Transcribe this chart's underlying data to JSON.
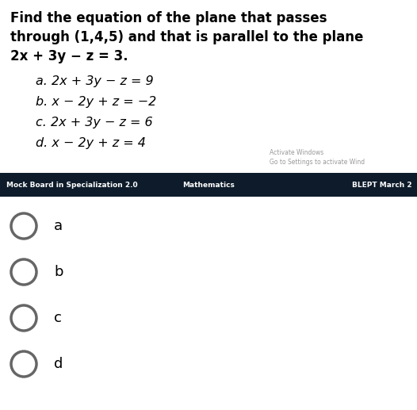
{
  "question_line1": "Find the equation of the plane that passes",
  "question_line2": "through (1,4,5) and that is parallel to the plane",
  "question_line3": "2x + 3y − z = 3.",
  "option_a": "a. 2x + 3y − z = 9",
  "option_b": "b. x − 2y + z = −2",
  "option_c": "c. 2x + 3y − z = 6",
  "option_d": "d. x − 2y + z = 4",
  "footer_left": "Mock Board in Specialization 2.0",
  "footer_center": "Mathematics",
  "footer_right": "BLEPT March 2",
  "activate_line1": "Activate Windows",
  "activate_line2": "Go to Settings to activate Wind",
  "choices": [
    "a",
    "b",
    "c",
    "d"
  ],
  "background_color": "#ffffff",
  "footer_bg": "#0d1b2a",
  "footer_text_color": "#ffffff",
  "text_color": "#000000",
  "circle_color": "#666666",
  "activate_color": "#999999",
  "fig_width": 5.26,
  "fig_height": 5.17,
  "dpi": 100
}
